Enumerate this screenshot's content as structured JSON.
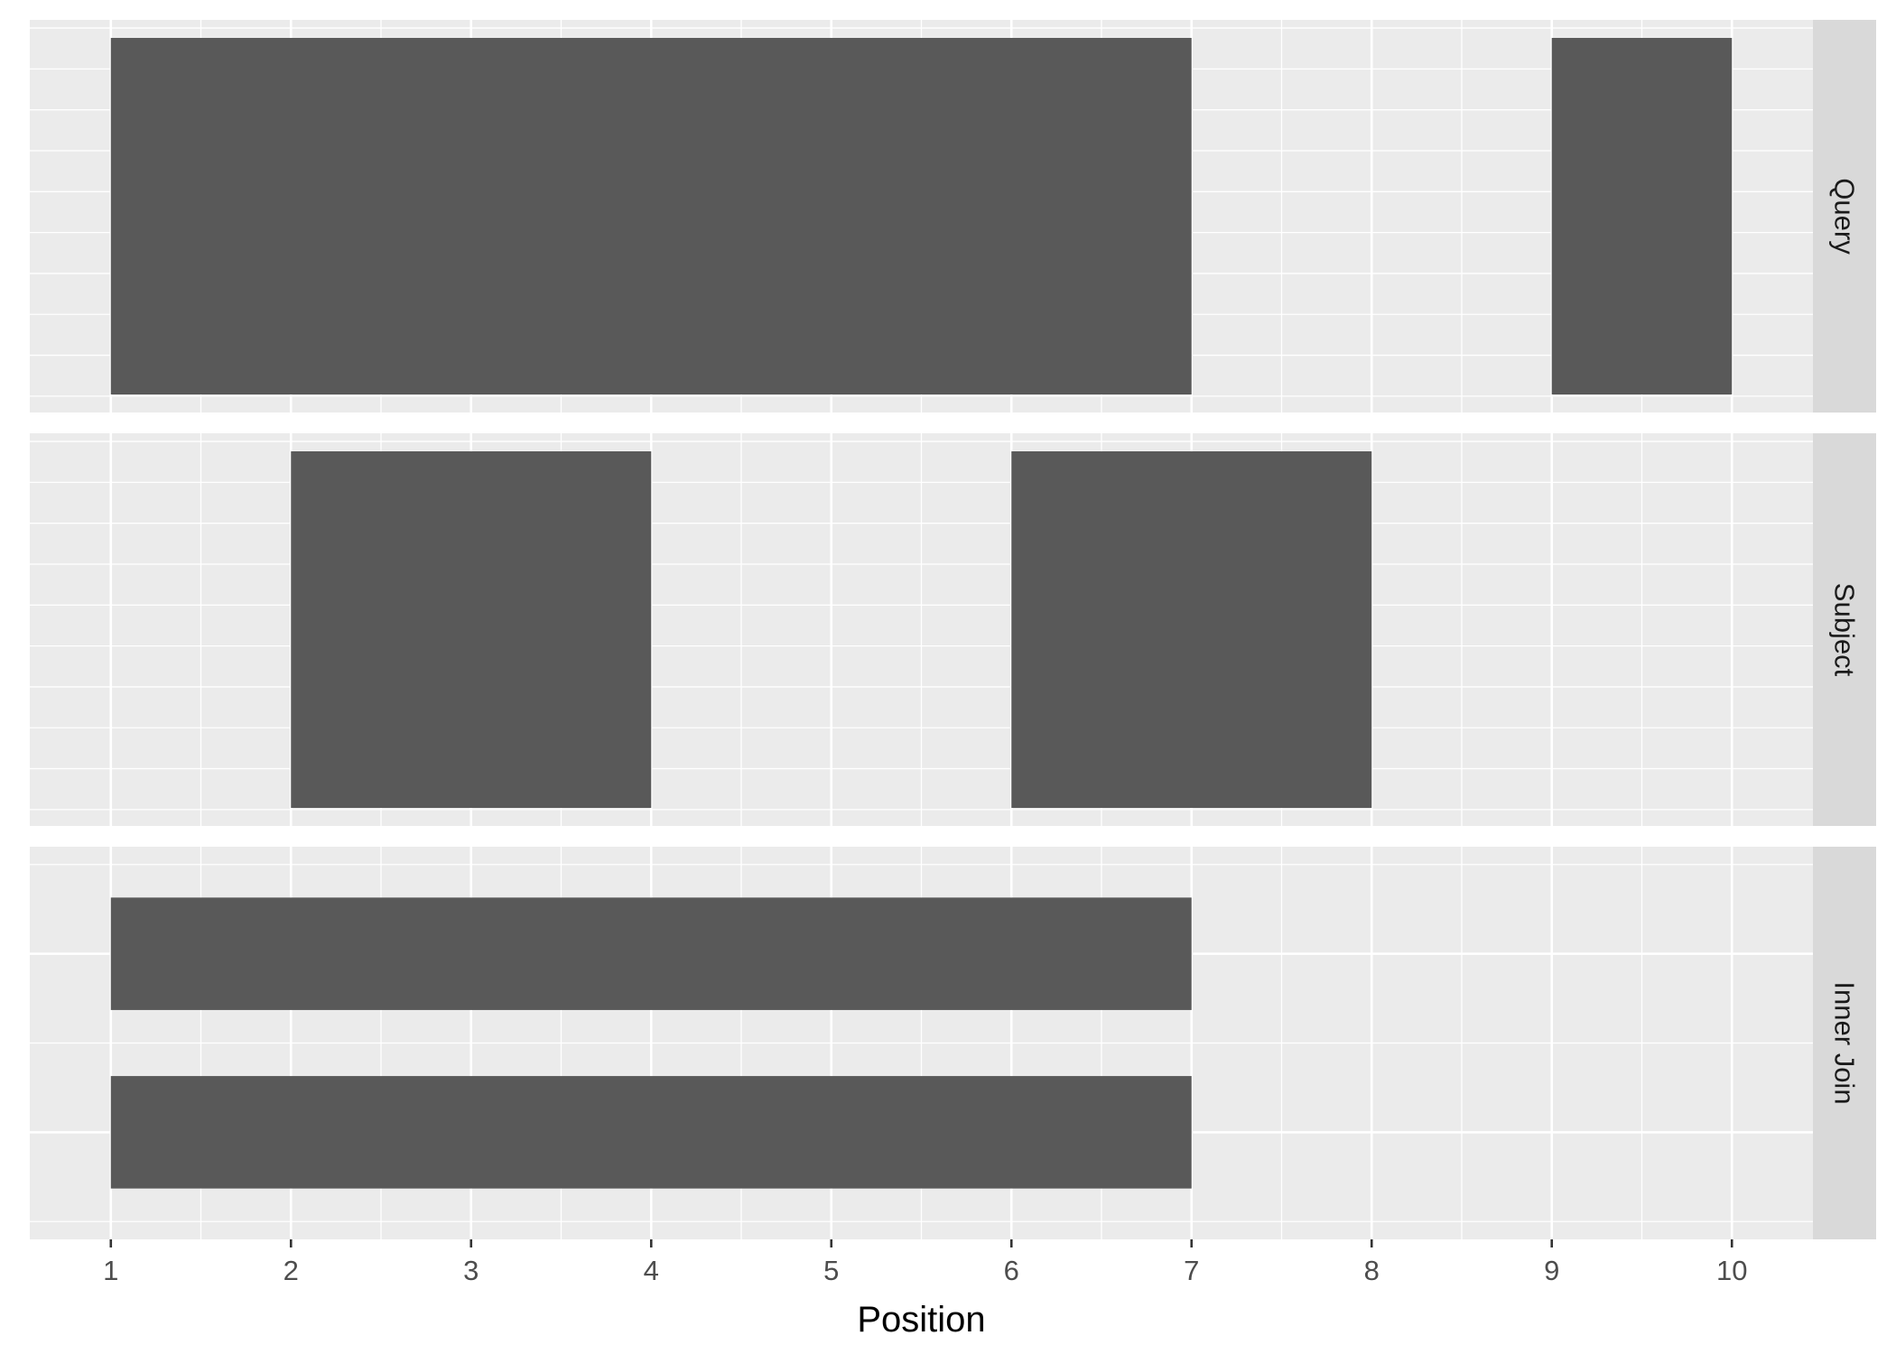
{
  "chart_data": {
    "type": "bar",
    "orientation": "horizontal-range",
    "xlabel": "Position",
    "xlim": [
      0.55,
      10.45
    ],
    "x_ticks": [
      "1",
      "2",
      "3",
      "4",
      "5",
      "6",
      "7",
      "8",
      "9",
      "10"
    ],
    "grid": true,
    "facets": [
      {
        "label": "Query",
        "ranges": [
          {
            "start": 1,
            "end": 7,
            "row": 1
          },
          {
            "start": 9,
            "end": 10,
            "row": 1
          }
        ]
      },
      {
        "label": "Subject",
        "ranges": [
          {
            "start": 2,
            "end": 4,
            "row": 1
          },
          {
            "start": 6,
            "end": 8,
            "row": 1
          }
        ]
      },
      {
        "label": "Inner Join",
        "ranges": [
          {
            "start": 1,
            "end": 7,
            "row": 1
          },
          {
            "start": 1,
            "end": 7,
            "row": 2
          }
        ]
      }
    ],
    "colors": {
      "bar": "#595959",
      "panel": "#ebebeb",
      "strip": "#d9d9d9",
      "grid": "#ffffff"
    }
  }
}
